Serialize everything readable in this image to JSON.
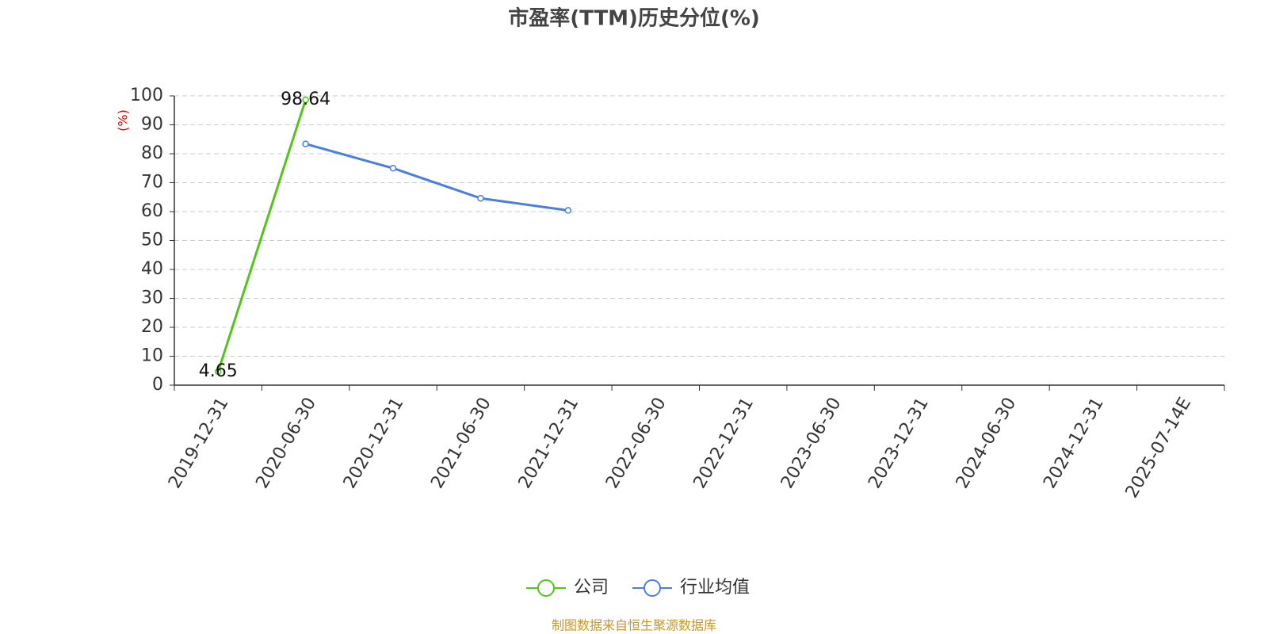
{
  "chart_data": {
    "type": "line",
    "title": "市盈率(TTM)历史分位(%)",
    "y_label": "(%)",
    "source": "制图数据来自恒生聚源数据库",
    "categories": [
      "2019-12-31",
      "2020-06-30",
      "2020-12-31",
      "2021-06-30",
      "2021-12-31",
      "2022-06-30",
      "2022-12-31",
      "2023-06-30",
      "2023-12-31",
      "2024-06-30",
      "2024-12-31",
      "2025-07-14E"
    ],
    "series": [
      {
        "name": "公司",
        "color": "#52c41a",
        "data_labels": true,
        "values": [
          4.65,
          98.64,
          null,
          null,
          null,
          null,
          null,
          null,
          null,
          null,
          null,
          null
        ]
      },
      {
        "name": "行业均值",
        "color": "#4a7fdc",
        "data_labels": false,
        "values": [
          null,
          83.4,
          75.0,
          64.6,
          60.4,
          null,
          null,
          null,
          null,
          null,
          null,
          null
        ]
      }
    ],
    "ylim": [
      0,
      100
    ],
    "yticks": [
      0,
      10,
      20,
      30,
      40,
      50,
      60,
      70,
      80,
      90,
      100
    ],
    "grid": true,
    "legend": "bottom"
  }
}
